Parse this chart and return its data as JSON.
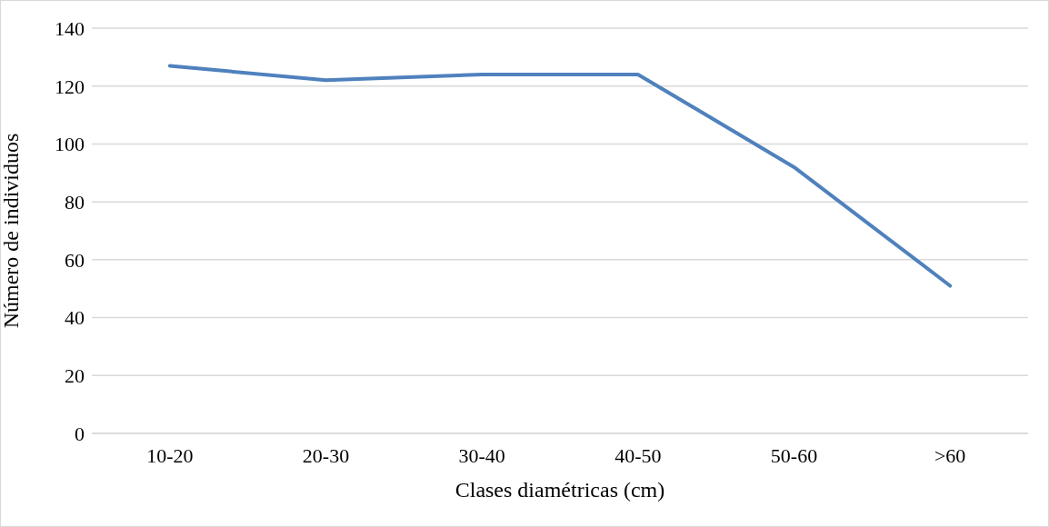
{
  "chart_data": {
    "type": "line",
    "xlabel": "Clases diamétricas (cm)",
    "ylabel": "Número de individuos",
    "categories": [
      "10-20",
      "20-30",
      "30-40",
      "40-50",
      "50-60",
      ">60"
    ],
    "series": [
      {
        "color": "#4f81bd",
        "values": [
          127,
          122,
          124,
          124,
          92,
          51
        ]
      }
    ],
    "ylim": [
      0,
      140
    ],
    "yticks": [
      0,
      20,
      40,
      60,
      80,
      100,
      120,
      140
    ],
    "grid": "y",
    "legend": false,
    "marker": "none",
    "line_style": "solid"
  }
}
